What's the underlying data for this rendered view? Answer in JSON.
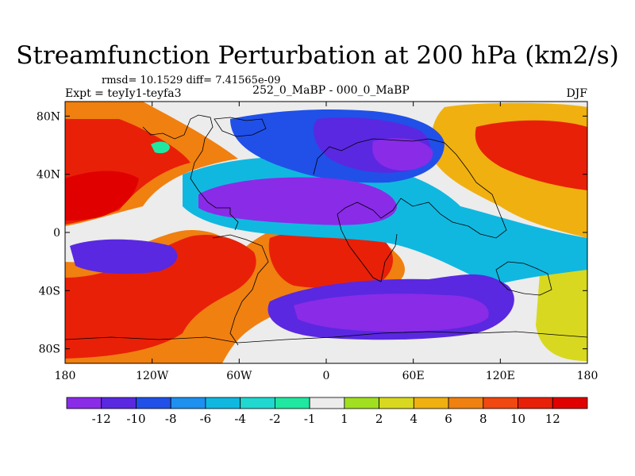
{
  "title": "Streamfunction Perturbation at 200 hPa (km2/s)",
  "stats": "rmsd= 10.1529 diff= 7.41565e-09",
  "experiment": "Expt = teyIy1-teyfa3",
  "subtitle": "252_0_MaBP - 000_0_MaBP",
  "season": "DJF",
  "map": {
    "projection": "cylindrical-equidistant",
    "lon_range": [
      -180,
      180
    ],
    "lat_range": [
      -90,
      90
    ],
    "coastlines": "coarse-grid",
    "lon_ticks": [
      {
        "value": -180,
        "label": "180"
      },
      {
        "value": -120,
        "label": "120W"
      },
      {
        "value": -60,
        "label": "60W"
      },
      {
        "value": 0,
        "label": "0"
      },
      {
        "value": 60,
        "label": "60E"
      },
      {
        "value": 120,
        "label": "120E"
      },
      {
        "value": 180,
        "label": "180"
      }
    ],
    "lat_ticks": [
      {
        "value": 80,
        "label": "80N"
      },
      {
        "value": 40,
        "label": "40N"
      },
      {
        "value": 0,
        "label": "0"
      },
      {
        "value": -40,
        "label": "40S"
      },
      {
        "value": -80,
        "label": "80S"
      }
    ]
  },
  "colorbar": {
    "levels": [
      "-12",
      "-10",
      "-8",
      "-6",
      "-4",
      "-2",
      "-1",
      "1",
      "2",
      "4",
      "6",
      "8",
      "10",
      "12"
    ],
    "colors": [
      "#8a2be8",
      "#5a28e0",
      "#2050e8",
      "#1e90f0",
      "#10b8e0",
      "#20d8d0",
      "#20e8a0",
      "#ececec",
      "#a0e020",
      "#d8d820",
      "#f0b010",
      "#f08010",
      "#f04810",
      "#e82008",
      "#e00000"
    ]
  }
}
